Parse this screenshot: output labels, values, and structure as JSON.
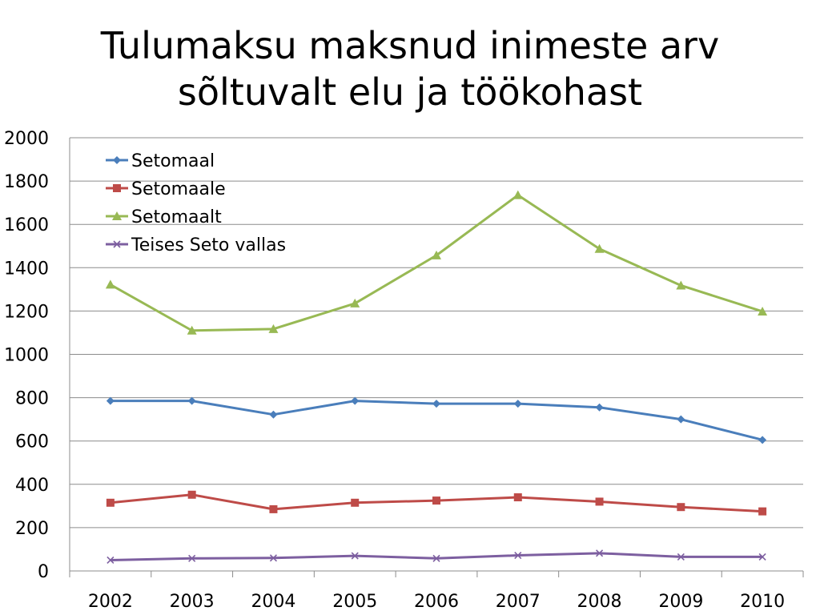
{
  "title_lines": [
    "Tulumaksu maksnud inimeste arv",
    "sõltuvalt elu ja töökohast"
  ],
  "chart_data": {
    "type": "line",
    "title": "Tulumaksu maksnud inimeste arv sõltuvalt elu ja töökohast",
    "categories": [
      "2002",
      "2003",
      "2004",
      "2005",
      "2006",
      "2007",
      "2008",
      "2009",
      "2010"
    ],
    "ylim": [
      0,
      2000
    ],
    "yticks": [
      0,
      200,
      400,
      600,
      800,
      1000,
      1200,
      1400,
      1600,
      1800,
      2000
    ],
    "grid": true,
    "legend_position": "top-left",
    "series": [
      {
        "name": "Setomaal",
        "color": "#4A7EBB",
        "marker": "diamond",
        "values": [
          785,
          785,
          722,
          785,
          772,
          772,
          755,
          700,
          605
        ]
      },
      {
        "name": "Setomaale",
        "color": "#BE4B48",
        "marker": "square",
        "values": [
          315,
          352,
          285,
          315,
          325,
          340,
          320,
          295,
          275
        ]
      },
      {
        "name": "Setomaalt",
        "color": "#98B954",
        "marker": "triangle",
        "values": [
          1322,
          1110,
          1117,
          1235,
          1457,
          1735,
          1487,
          1318,
          1198
        ]
      },
      {
        "name": "Teises Seto vallas",
        "color": "#7D5FA0",
        "marker": "x",
        "values": [
          50,
          58,
          60,
          70,
          58,
          72,
          82,
          65,
          65
        ]
      }
    ]
  }
}
